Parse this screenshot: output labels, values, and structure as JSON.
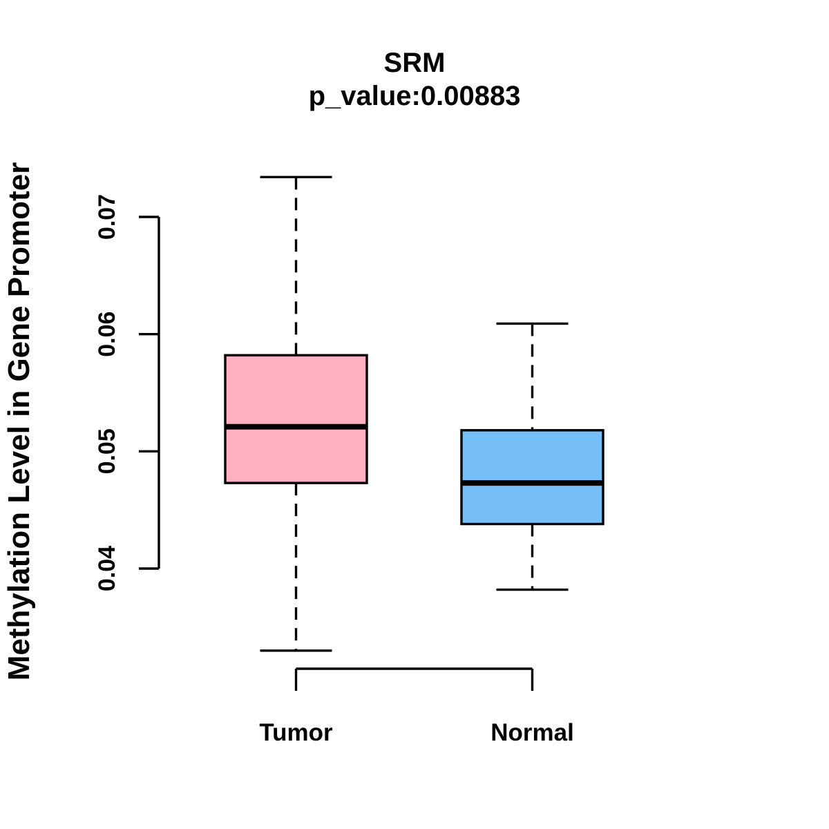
{
  "figure": {
    "background": "#ffffff",
    "line_color": "#000000"
  },
  "chart_data": {
    "type": "boxplot",
    "title": "SRM",
    "subtitle": "p_value:0.00883",
    "p_value": 0.00883,
    "ylabel": "Methylation Level in Gene Promoter",
    "xlabel": "",
    "categories": [
      "Tumor",
      "Normal"
    ],
    "ylim": [
      0.04,
      0.07
    ],
    "yticks": [
      0.04,
      0.05,
      0.06,
      0.07
    ],
    "ytick_labels": [
      "0.04",
      "0.05",
      "0.06",
      "0.07"
    ],
    "grid": false,
    "legend": "none",
    "series": [
      {
        "name": "Tumor",
        "color": "#FFB0C1",
        "whisker_low": 0.033,
        "q1": 0.0473,
        "median": 0.0521,
        "q3": 0.0582,
        "whisker_high": 0.0734
      },
      {
        "name": "Normal",
        "color": "#75BEF8",
        "whisker_low": 0.0382,
        "q1": 0.0438,
        "median": 0.0473,
        "q3": 0.0518,
        "whisker_high": 0.0609
      }
    ]
  }
}
